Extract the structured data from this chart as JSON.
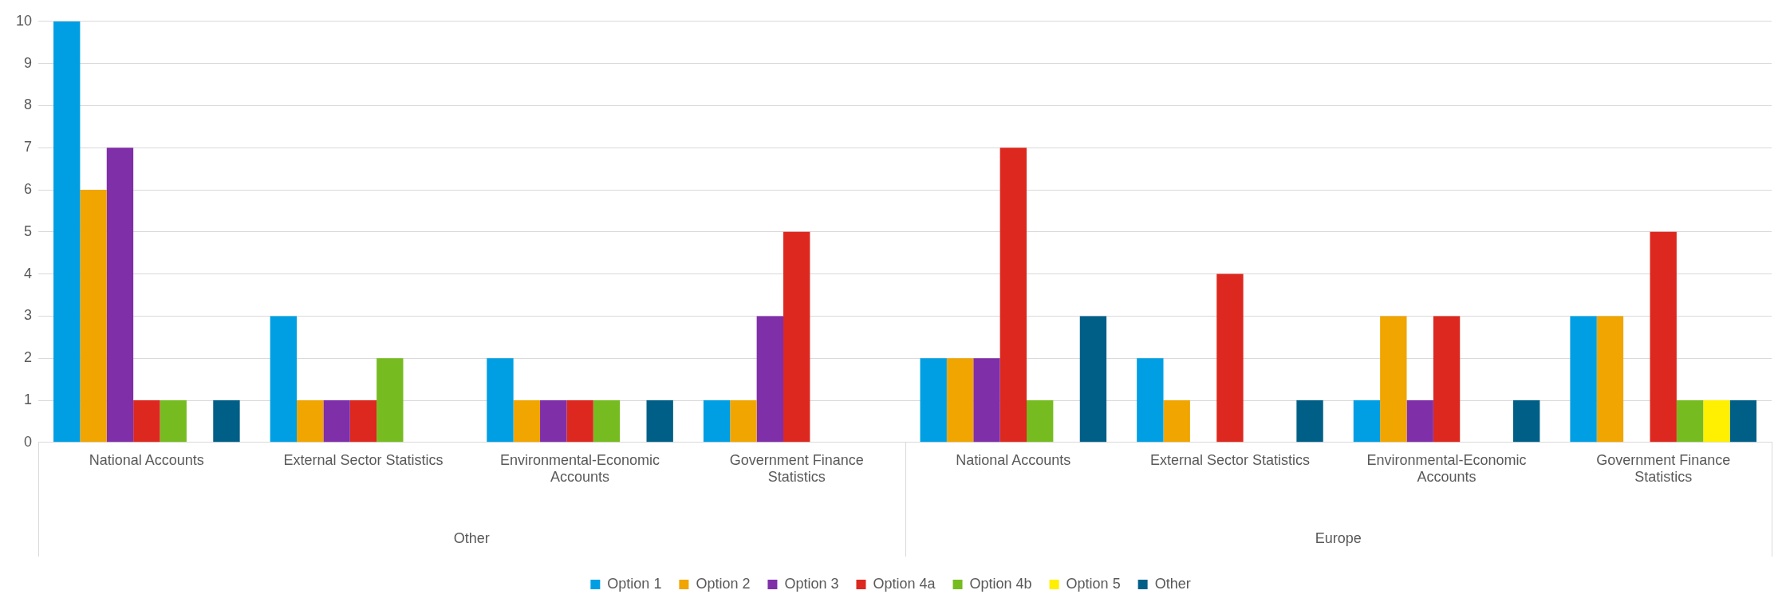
{
  "chart_data": {
    "type": "bar",
    "categories": [
      "National Accounts",
      "External Sector Statistics",
      "Environmental-Economic Accounts",
      "Government Finance Statistics",
      "National Accounts",
      "External Sector Statistics",
      "Environmental-Economic Accounts",
      "Government Finance Statistics"
    ],
    "series": [
      {
        "name": "Option 1",
        "color": "#009fe3",
        "values": [
          10,
          3,
          2,
          1,
          2,
          2,
          1,
          3
        ]
      },
      {
        "name": "Option 2",
        "color": "#f0a500",
        "values": [
          6,
          1,
          1,
          1,
          2,
          1,
          3,
          3
        ]
      },
      {
        "name": "Option 3",
        "color": "#7f2fa8",
        "values": [
          7,
          1,
          1,
          3,
          2,
          0,
          1,
          0
        ]
      },
      {
        "name": "Option 4a",
        "color": "#dc281e",
        "values": [
          1,
          1,
          1,
          5,
          7,
          4,
          3,
          5
        ]
      },
      {
        "name": "Option 4b",
        "color": "#76bc21",
        "values": [
          1,
          2,
          1,
          0,
          1,
          0,
          0,
          1
        ]
      },
      {
        "name": "Option 5",
        "color": "#ffef00",
        "values": [
          0,
          0,
          0,
          0,
          0,
          0,
          0,
          1
        ]
      },
      {
        "name": "Other",
        "color": "#005f87",
        "values": [
          1,
          0,
          1,
          0,
          3,
          1,
          1,
          1
        ]
      }
    ],
    "annotations": [
      "Other",
      "Europe"
    ],
    "ylim": [
      0,
      10
    ],
    "yticks": [
      0,
      1,
      2,
      3,
      4,
      5,
      6,
      7,
      8,
      9,
      10
    ],
    "grid": "y",
    "legend": "bottom"
  }
}
